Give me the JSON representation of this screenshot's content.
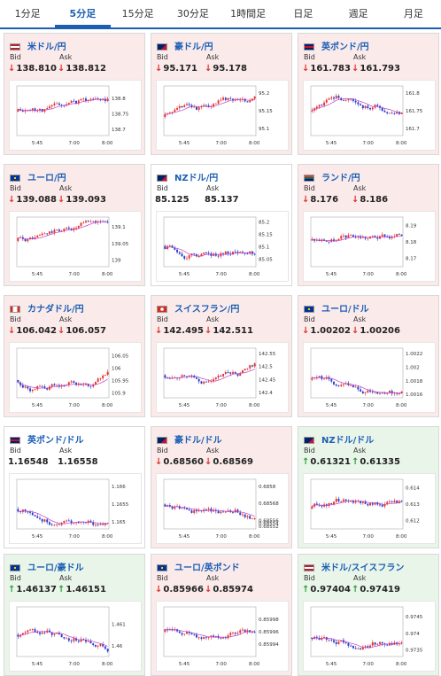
{
  "tabs": [
    {
      "label": "1分足",
      "active": false
    },
    {
      "label": "5分足",
      "active": true
    },
    {
      "label": "15分足",
      "active": false
    },
    {
      "label": "30分足",
      "active": false
    },
    {
      "label": "1時間足",
      "active": false
    },
    {
      "label": "日足",
      "active": false
    },
    {
      "label": "週足",
      "active": false
    },
    {
      "label": "月足",
      "active": false
    }
  ],
  "labels": {
    "bid": "Bid",
    "ask": "Ask"
  },
  "colors": {
    "down": "#d9342b",
    "up": "#2e9e3e",
    "link": "#1a5fb4",
    "bull": "#e8322b",
    "bear": "#2b3cc8",
    "ma": "#c040c8"
  },
  "pairs": [
    {
      "name": "米ドル/円",
      "flag": "us-flag-icon",
      "dir": "down",
      "bid": "138.810",
      "ask": "138.812",
      "chart_data": {
        "type": "candlestick",
        "x_ticks": [
          "5:45",
          "7:00",
          "8:00"
        ],
        "y_ticks": [
          "138.8",
          "138.75",
          "138.7"
        ],
        "ylim": [
          138.68,
          138.84
        ],
        "seed": 11,
        "trend": 0.3
      }
    },
    {
      "name": "豪ドル/円",
      "flag": "au-flag-icon",
      "dir": "down",
      "bid": "95.171",
      "ask": "95.178",
      "chart_data": {
        "type": "candlestick",
        "x_ticks": [
          "5:45",
          "7:00",
          "8:00"
        ],
        "y_ticks": [
          "95.2",
          "95.15",
          "95.1"
        ],
        "ylim": [
          95.08,
          95.22
        ],
        "seed": 23,
        "trend": 0.1
      }
    },
    {
      "name": "英ポンド/円",
      "flag": "gb-flag-icon",
      "dir": "down",
      "bid": "161.783",
      "ask": "161.793",
      "chart_data": {
        "type": "candlestick",
        "x_ticks": [
          "5:45",
          "7:00",
          "8:00"
        ],
        "y_ticks": [
          "161.8",
          "161.75",
          "161.7"
        ],
        "ylim": [
          161.68,
          161.82
        ],
        "seed": 37,
        "trend": 0.2
      }
    },
    {
      "name": "ユーロ/円",
      "flag": "eu-flag-icon",
      "dir": "down",
      "bid": "139.088",
      "ask": "139.093",
      "chart_data": {
        "type": "candlestick",
        "x_ticks": [
          "5:45",
          "7:00",
          "8:00"
        ],
        "y_ticks": [
          "139.1",
          "139.05",
          "139"
        ],
        "ylim": [
          138.98,
          139.13
        ],
        "seed": 41,
        "trend": 0.1
      }
    },
    {
      "name": "NZドル/円",
      "flag": "nz-flag-icon",
      "dir": "none",
      "bid": "85.125",
      "ask": "85.137",
      "chart_data": {
        "type": "candlestick",
        "x_ticks": [
          "5:45",
          "7:00",
          "8:00"
        ],
        "y_ticks": [
          "85.2",
          "85.15",
          "85.1",
          "85.05"
        ],
        "ylim": [
          85.02,
          85.22
        ],
        "seed": 53,
        "trend": 0.15
      }
    },
    {
      "name": "ランド/円",
      "flag": "za-flag-icon",
      "dir": "down",
      "bid": "8.176",
      "ask": "8.186",
      "chart_data": {
        "type": "candlestick",
        "x_ticks": [
          "5:45",
          "7:00",
          "8:00"
        ],
        "y_ticks": [
          "8.19",
          "8.18",
          "8.17"
        ],
        "ylim": [
          8.165,
          8.195
        ],
        "seed": 67,
        "trend": 0.2
      }
    },
    {
      "name": "カナダドル/円",
      "flag": "ca-flag-icon",
      "dir": "down",
      "bid": "106.042",
      "ask": "106.057",
      "chart_data": {
        "type": "candlestick",
        "x_ticks": [
          "5:45",
          "7:00",
          "8:00"
        ],
        "y_ticks": [
          "106.05",
          "106",
          "105.95",
          "105.9"
        ],
        "ylim": [
          105.88,
          106.08
        ],
        "seed": 71,
        "trend": 0.35
      }
    },
    {
      "name": "スイスフラン/円",
      "flag": "ch-flag-icon",
      "dir": "down",
      "bid": "142.495",
      "ask": "142.511",
      "chart_data": {
        "type": "candlestick",
        "x_ticks": [
          "5:45",
          "7:00",
          "8:00"
        ],
        "y_ticks": [
          "142.55",
          "142.5",
          "142.45",
          "142.4"
        ],
        "ylim": [
          142.38,
          142.57
        ],
        "seed": 83,
        "trend": 0.25
      }
    },
    {
      "name": "ユーロ/ドル",
      "flag": "eu-flag-icon",
      "dir": "down",
      "bid": "1.00202",
      "ask": "1.00206",
      "chart_data": {
        "type": "candlestick",
        "x_ticks": [
          "5:45",
          "7:00",
          "8:00"
        ],
        "y_ticks": [
          "1.0022",
          "1.002",
          "1.0018",
          "1.0016"
        ],
        "ylim": [
          1.00155,
          1.00228
        ],
        "seed": 97,
        "trend": -0.2
      }
    },
    {
      "name": "英ポンド/ドル",
      "flag": "gb-flag-icon",
      "dir": "none",
      "bid": "1.16548",
      "ask": "1.16558",
      "chart_data": {
        "type": "candlestick",
        "x_ticks": [
          "5:45",
          "7:00",
          "8:00"
        ],
        "y_ticks": [
          "1.166",
          "1.1655",
          "1.165"
        ],
        "ylim": [
          1.1648,
          1.1662
        ],
        "seed": 101,
        "trend": 0.0
      }
    },
    {
      "name": "豪ドル/ドル",
      "flag": "au-flag-icon",
      "dir": "down",
      "bid": "0.68560",
      "ask": "0.68569",
      "chart_data": {
        "type": "candlestick",
        "x_ticks": [
          "5:45",
          "7:00",
          "8:00"
        ],
        "y_ticks": [
          "0.6858",
          "0.68568",
          "0.68556",
          "0.68554",
          "0.68552"
        ],
        "ylim": [
          0.6855,
          0.68585
        ],
        "seed": 113,
        "trend": -0.1
      }
    },
    {
      "name": "NZドル/ドル",
      "flag": "nz-flag-icon",
      "dir": "up",
      "bid": "0.61321",
      "ask": "0.61335",
      "chart_data": {
        "type": "candlestick",
        "x_ticks": [
          "5:45",
          "7:00",
          "8:00"
        ],
        "y_ticks": [
          "0.614",
          "0.613",
          "0.612"
        ],
        "ylim": [
          0.6115,
          0.6145
        ],
        "seed": 127,
        "trend": 0.05
      }
    },
    {
      "name": "ユーロ/豪ドル",
      "flag": "eu-flag-icon",
      "dir": "up",
      "bid": "1.46137",
      "ask": "1.46151",
      "chart_data": {
        "type": "candlestick",
        "x_ticks": [
          "5:45",
          "7:00",
          "8:00"
        ],
        "y_ticks": [
          "1.461",
          "1.46"
        ],
        "ylim": [
          1.4595,
          1.4618
        ],
        "seed": 131,
        "trend": 0.05
      }
    },
    {
      "name": "ユーロ/英ポンド",
      "flag": "eu-flag-icon",
      "dir": "down",
      "bid": "0.85966",
      "ask": "0.85974",
      "chart_data": {
        "type": "candlestick",
        "x_ticks": [
          "5:45",
          "7:00",
          "8:00"
        ],
        "y_ticks": [
          "0.85998",
          "0.85996",
          "0.85994"
        ],
        "ylim": [
          0.85992,
          0.86
        ],
        "seed": 139,
        "trend": -0.05
      }
    },
    {
      "name": "米ドル/スイスフラン",
      "flag": "us-flag-icon",
      "dir": "up",
      "bid": "0.97404",
      "ask": "0.97419",
      "chart_data": {
        "type": "candlestick",
        "x_ticks": [
          "5:45",
          "7:00",
          "8:00"
        ],
        "y_ticks": [
          "0.9745",
          "0.974",
          "0.9735"
        ],
        "ylim": [
          0.9733,
          0.9748
        ],
        "seed": 149,
        "trend": 0.3
      }
    }
  ]
}
